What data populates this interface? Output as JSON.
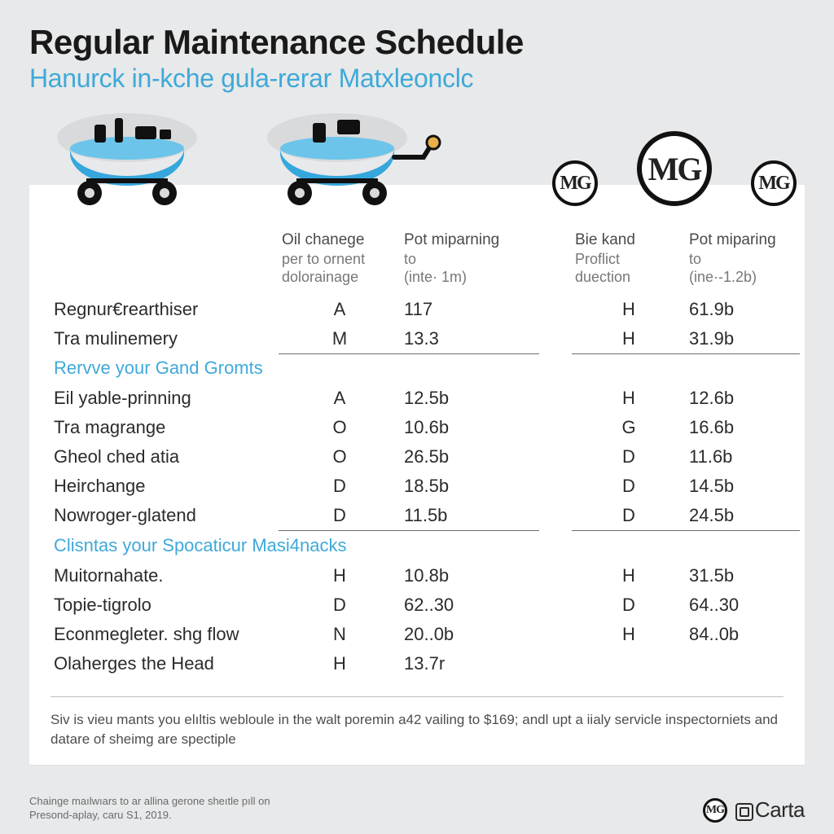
{
  "title": "Regular Maintenance Schedule",
  "subtitle": "Hanurck in-kche gula-rerar Matxleonclc",
  "columns": {
    "a1": {
      "l1": "Oil chanege",
      "l2": "per to ornent",
      "l3": "dolorainage"
    },
    "a2": {
      "l1": "Pot miparning",
      "l2": "to",
      "l3": "(inte· 1m)"
    },
    "b1": {
      "l1": "Bie kand",
      "l2": "Proflict",
      "l3": "duection"
    },
    "b2": {
      "l1": "Pot miparing",
      "l2": "to",
      "l3": "(ine·-1.2b)"
    }
  },
  "sections": [
    {
      "heading": null,
      "rows": [
        {
          "label": "Regnur€rearthiser",
          "a1": "A",
          "a2": "117",
          "b1": "H",
          "b2": "61.9b"
        },
        {
          "label": "Tra mulinemery",
          "a1": "M",
          "a2": "13.3",
          "b1": "H",
          "b2": "31.9b"
        }
      ]
    },
    {
      "heading": "Rervve your Gand Gromts",
      "rows": [
        {
          "label": "Eil yable-prinning",
          "a1": "A",
          "a2": "12.5b",
          "b1": "H",
          "b2": "12.6b"
        },
        {
          "label": "Tra magrange",
          "a1": "O",
          "a2": "10.6b",
          "b1": "G",
          "b2": "16.6b"
        },
        {
          "label": "Gheol ched atia",
          "a1": "O",
          "a2": "26.5b",
          "b1": "D",
          "b2": "11.6b"
        },
        {
          "label": "Heirchange",
          "a1": "D",
          "a2": "18.5b",
          "b1": "D",
          "b2": "14.5b"
        },
        {
          "label": "Nowroger-glatend",
          "a1": "D",
          "a2": "11.5b",
          "b1": "D",
          "b2": "24.5b"
        }
      ]
    },
    {
      "heading": "Clisntas your Spocaticur Masi4nacks",
      "rows": [
        {
          "label": "Muitornahate.",
          "a1": "H",
          "a2": "10.8b",
          "b1": "H",
          "b2": "31.5b"
        },
        {
          "label": "Topie-tigrolo",
          "a1": "D",
          "a2": "62..30",
          "b1": "D",
          "b2": "64..30"
        },
        {
          "label": "Econmegleter. shg flow",
          "a1": "N",
          "a2": "20..0b",
          "b1": "H",
          "b2": "84..0b"
        },
        {
          "label": "Olaherges the Head",
          "a1": "H",
          "a2": "13.7r",
          "b1": "",
          "b2": ""
        }
      ]
    }
  ],
  "footnote": "Siv is vieu mants you elıltis webloule in the walt poremin a42 vailing to $169; andl upt a iialy servicle inspectorniets and datare of sheimg are spectiple",
  "fineprint_l1": "Chainge maılwıars to ar allina gerone sheıtle pıll on",
  "fineprint_l2": "Presond-aplay, caru S1, 2019.",
  "brand": "Carta",
  "colors": {
    "accent": "#3fa9d8",
    "text": "#222222",
    "panel": "#ffffff",
    "page": "#e8e9ea",
    "rule": "#6e6e6e"
  }
}
